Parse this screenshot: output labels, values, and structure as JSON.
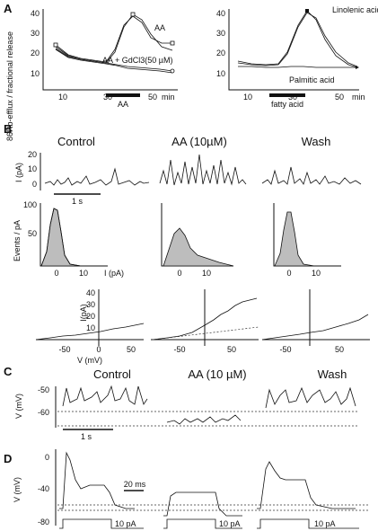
{
  "panels": {
    "A": "A",
    "B": "B",
    "C": "C",
    "D": "D"
  },
  "panel_a": {
    "ylabel": "86Rb-efflux / fractional release",
    "xunit": "min",
    "left": {
      "yticks": [
        "40",
        "30",
        "20",
        "10"
      ],
      "xticks": [
        "10",
        "30",
        "50"
      ],
      "series_labels": [
        "AA",
        "AA + GdCl3(50 µM)"
      ],
      "bar_label": "AA"
    },
    "right": {
      "yticks": [
        "40",
        "30",
        "20",
        "10"
      ],
      "xticks": [
        "10",
        "30",
        "50"
      ],
      "series_labels": [
        "Linolenic acid",
        "Palmitic acid"
      ],
      "bar_label": "fatty acid"
    }
  },
  "panel_b": {
    "conditions": [
      "Control",
      "AA (10µM)",
      "Wash"
    ],
    "trace_ylabel": "I (pA)",
    "trace_yticks": [
      "20",
      "10",
      "0"
    ],
    "time_scale": "1 s",
    "hist_ylabel": "Events / pA",
    "hist_yticks": [
      "100",
      "50"
    ],
    "hist_xticks": [
      "0",
      "10"
    ],
    "hist_xlabel": "I (pA)",
    "iv_ylabel": "I(pA)",
    "iv_yticks": [
      "40",
      "30",
      "20",
      "10"
    ],
    "iv_xticks": [
      "-50",
      "0",
      "50"
    ],
    "iv_xlabel": "V (mV)"
  },
  "panel_c": {
    "conditions": [
      "Control",
      "AA (10 µM)",
      "Wash"
    ],
    "ylabel": "V (mV)",
    "yticks": [
      "-50",
      "-60"
    ],
    "time_scale": "1 s"
  },
  "panel_d": {
    "ylabel": "V (mV)",
    "yticks": [
      "0",
      "-40",
      "-80"
    ],
    "time_scale": "20 ms",
    "stim_labels": [
      "10 pA",
      "10 pA",
      "10 pA"
    ]
  },
  "colors": {
    "ink": "#111111",
    "hist_fill": "#bdbdbd"
  }
}
